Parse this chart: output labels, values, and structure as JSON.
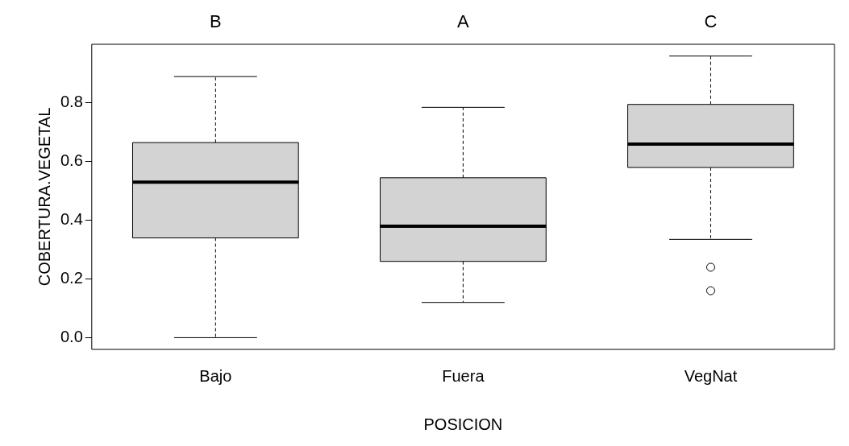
{
  "chart_data": {
    "type": "box",
    "xlabel": "POSICION",
    "ylabel": "COBERTURA.VEGETAL",
    "categories": [
      "Bajo",
      "Fuera",
      "VegNat"
    ],
    "color": "#d3d3d3",
    "boxes": [
      {
        "low": 0.0,
        "q1": 0.34,
        "median": 0.53,
        "q3": 0.665,
        "high": 0.89
      },
      {
        "low": 0.12,
        "q1": 0.26,
        "median": 0.38,
        "q3": 0.545,
        "high": 0.785
      },
      {
        "low": 0.335,
        "q1": 0.58,
        "median": 0.66,
        "q3": 0.795,
        "high": 0.96,
        "outliers": [
          0.24,
          0.16
        ]
      }
    ],
    "ylim": [
      -0.04,
      1.0
    ],
    "yticks": [
      {
        "value": 0,
        "label": "0.0"
      },
      {
        "value": 0.2,
        "label": "0.2"
      },
      {
        "value": 0.4,
        "label": "0.4"
      },
      {
        "value": 0.6,
        "label": "0.6"
      },
      {
        "value": 0.8,
        "label": "0.8"
      }
    ],
    "annotations": [
      "B",
      "A",
      "C"
    ]
  }
}
